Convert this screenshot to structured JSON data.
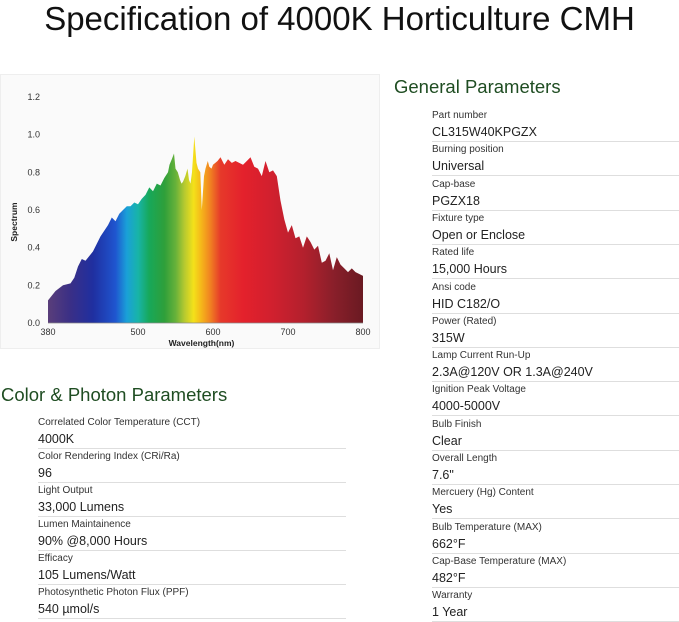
{
  "title": "Specification of 4000K Horticulture CMH",
  "chart_data": {
    "type": "area",
    "xlabel": "Wavelength(nm)",
    "ylabel": "Spectrum",
    "xlim": [
      380,
      800
    ],
    "ylim": [
      0,
      1.2
    ],
    "x_ticks": [
      380,
      500,
      600,
      700,
      800
    ],
    "y_ticks": [
      "0.0",
      "0.2",
      "0.4",
      "0.6",
      "0.8",
      "1.0",
      "1.2"
    ],
    "grid": false,
    "fill": "visible-spectrum gradient (violet to deep red)",
    "series": [
      {
        "x": [
          380,
          390,
          400,
          410,
          415,
          420,
          425,
          430,
          440,
          450,
          460,
          465,
          470,
          475,
          480,
          485,
          490,
          495,
          500,
          505,
          510,
          515,
          520,
          525,
          530,
          535,
          540,
          542,
          545,
          548,
          550,
          553,
          556,
          558,
          560,
          563,
          566,
          568,
          570,
          572,
          575,
          578,
          580,
          583,
          585,
          588,
          590,
          593,
          595,
          598,
          600,
          603,
          606,
          610,
          615,
          620,
          625,
          630,
          640,
          645,
          650,
          655,
          660,
          665,
          670,
          675,
          680,
          685,
          690,
          695,
          700,
          705,
          710,
          715,
          720,
          725,
          730,
          735,
          740,
          745,
          750,
          755,
          760,
          765,
          770,
          775,
          780,
          785,
          790,
          795,
          800
        ],
        "y": [
          0.12,
          0.17,
          0.2,
          0.21,
          0.24,
          0.3,
          0.34,
          0.33,
          0.38,
          0.46,
          0.52,
          0.56,
          0.54,
          0.58,
          0.6,
          0.62,
          0.62,
          0.64,
          0.63,
          0.66,
          0.68,
          0.72,
          0.7,
          0.74,
          0.73,
          0.77,
          0.8,
          0.84,
          0.87,
          0.9,
          0.82,
          0.8,
          0.76,
          0.74,
          0.75,
          0.78,
          0.82,
          0.76,
          0.74,
          0.8,
          0.99,
          0.85,
          0.82,
          0.8,
          0.6,
          0.78,
          0.82,
          0.86,
          0.83,
          0.82,
          0.84,
          0.85,
          0.86,
          0.88,
          0.84,
          0.87,
          0.85,
          0.86,
          0.84,
          0.86,
          0.88,
          0.83,
          0.82,
          0.78,
          0.86,
          0.8,
          0.81,
          0.78,
          0.65,
          0.55,
          0.48,
          0.52,
          0.45,
          0.46,
          0.4,
          0.46,
          0.43,
          0.39,
          0.41,
          0.32,
          0.33,
          0.37,
          0.28,
          0.35,
          0.31,
          0.29,
          0.27,
          0.29,
          0.27,
          0.26,
          0.25
        ]
      }
    ]
  },
  "general": {
    "title": "General Parameters",
    "rows": [
      {
        "label": "Part number",
        "value": "CL315W40KPGZX"
      },
      {
        "label": "Burning position",
        "value": "Universal"
      },
      {
        "label": "Cap-base",
        "value": "PGZX18"
      },
      {
        "label": "Fixture type",
        "value": "Open or Enclose"
      },
      {
        "label": "Rated life",
        "value": "15,000 Hours"
      },
      {
        "label": "Ansi code",
        "value": "HID C182/O"
      },
      {
        "label": "Power (Rated)",
        "value": "315W"
      },
      {
        "label": "Lamp Current Run-Up",
        "value": "2.3A@120V OR  1.3A@240V"
      },
      {
        "label": "Ignition Peak Voltage",
        "value": "4000-5000V"
      },
      {
        "label": "Bulb Finish",
        "value": "Clear"
      },
      {
        "label": "Overall Length",
        "value": "7.6\""
      },
      {
        "label": "Mercuery (Hg) Content",
        "value": "Yes"
      },
      {
        "label": "Bulb Temperature (MAX)",
        "value": "662°F"
      },
      {
        "label": "Cap-Base Temperature (MAX)",
        "value": "482°F"
      },
      {
        "label": "Warranty",
        "value": "1 Year"
      }
    ]
  },
  "color_photon": {
    "title": "Color & Photon Parameters",
    "rows": [
      {
        "label": "Correlated Color Temperature (CCT)",
        "value": "4000K"
      },
      {
        "label": "Color Rendering Index (CRi/Ra)",
        "value": "96"
      },
      {
        "label": "Light Output",
        "value": "33,000 Lumens"
      },
      {
        "label": "Lumen Maintainence",
        "value": "90% @8,000 Hours"
      },
      {
        "label": "Efficacy",
        "value": "105 Lumens/Watt"
      },
      {
        "label": "Photosynthetic Photon Flux (PPF)",
        "value": "540 µmol/s"
      }
    ]
  },
  "colors": {
    "section_title": "#1f4d22",
    "rule": "#dedede"
  }
}
